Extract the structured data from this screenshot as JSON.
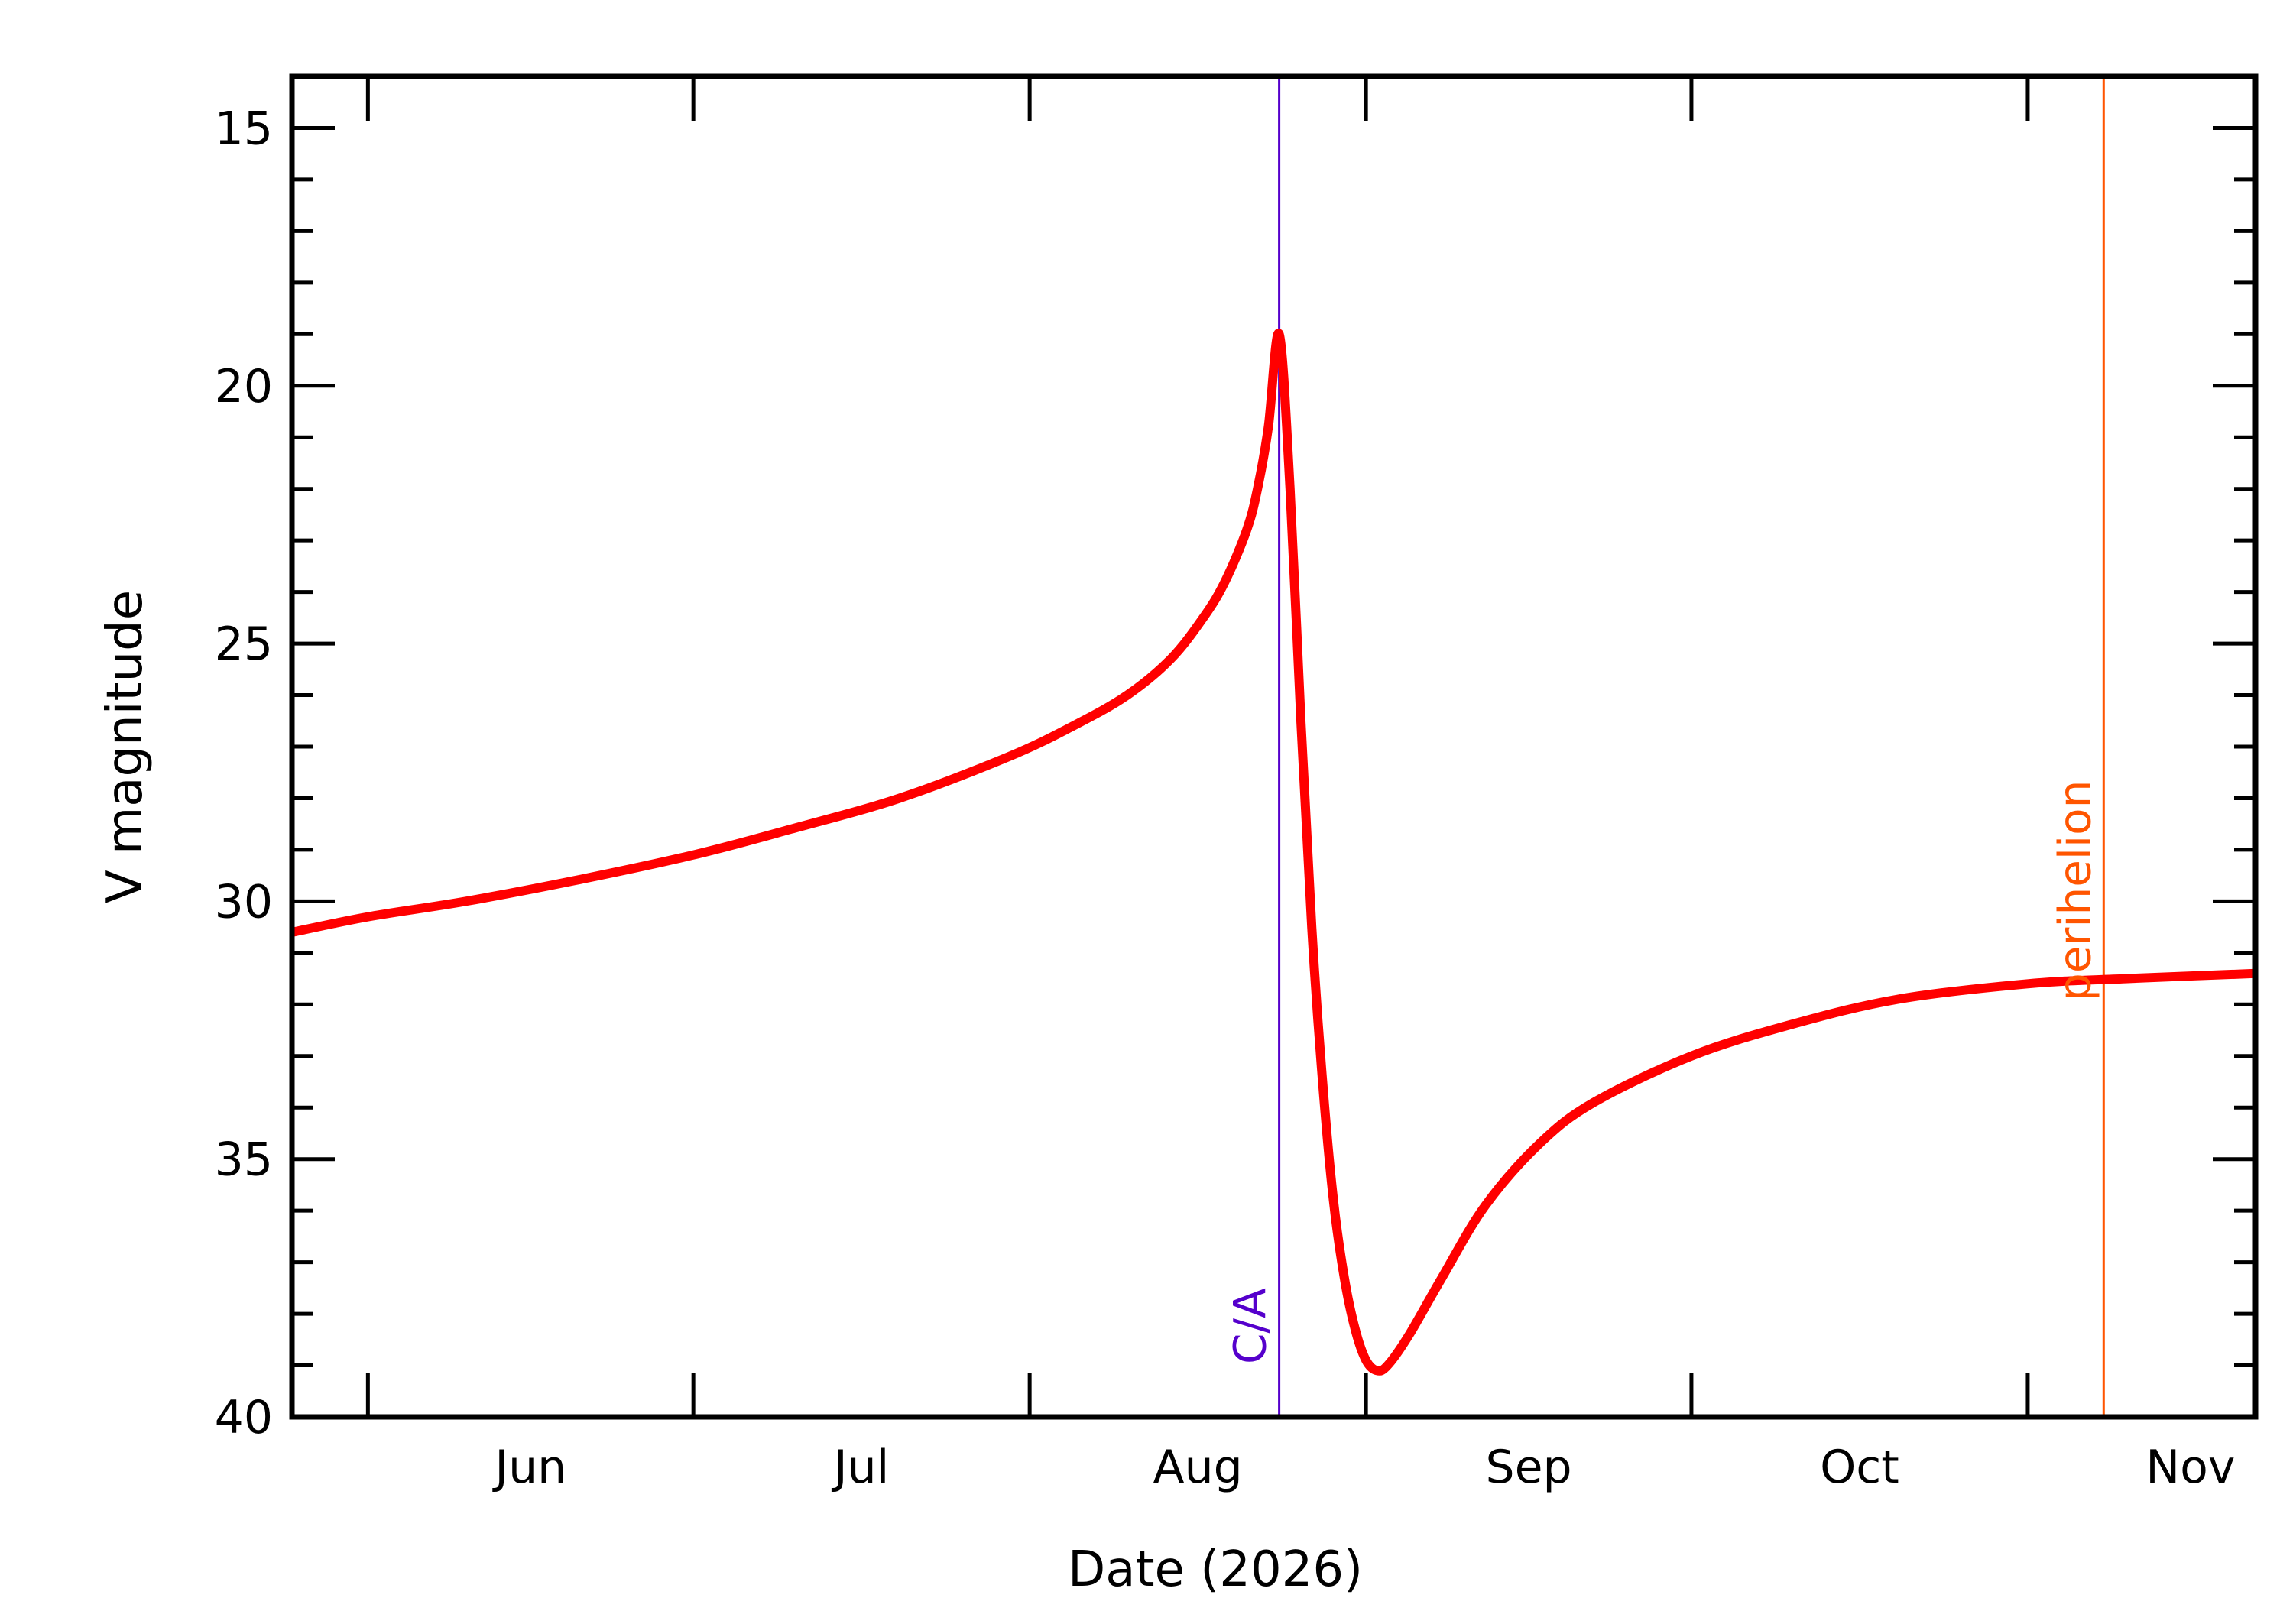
{
  "chart_data": {
    "type": "line",
    "title": "",
    "xlabel": "Date (2026)",
    "ylabel": "V magnitude",
    "x_unit": "date",
    "xlim": [
      "2026-05-25",
      "2026-11-22"
    ],
    "ylim": [
      40,
      14
    ],
    "y_inverted": true,
    "grid": false,
    "legend": "none",
    "x_ticks": [
      {
        "date": "2026-06-01",
        "label": "Jun"
      },
      {
        "date": "2026-07-01",
        "label": "Jul"
      },
      {
        "date": "2026-08-01",
        "label": "Aug"
      },
      {
        "date": "2026-09-01",
        "label": "Sep"
      },
      {
        "date": "2026-10-01",
        "label": "Oct"
      },
      {
        "date": "2026-11-01",
        "label": "Nov"
      }
    ],
    "y_ticks": [
      15,
      20,
      25,
      30,
      35,
      40
    ],
    "y_minor_step": 1,
    "series": [
      {
        "color": "#ff0000",
        "points": [
          {
            "x": "2026-05-25",
            "y": 30.6
          },
          {
            "x": "2026-06-01",
            "y": 30.3
          },
          {
            "x": "2026-06-10",
            "y": 30.0
          },
          {
            "x": "2026-06-20",
            "y": 29.6
          },
          {
            "x": "2026-07-01",
            "y": 29.1
          },
          {
            "x": "2026-07-10",
            "y": 28.6
          },
          {
            "x": "2026-07-20",
            "y": 28.0
          },
          {
            "x": "2026-07-30",
            "y": 27.2
          },
          {
            "x": "2026-08-05",
            "y": 26.6
          },
          {
            "x": "2026-08-10",
            "y": 26.0
          },
          {
            "x": "2026-08-14",
            "y": 25.3
          },
          {
            "x": "2026-08-17",
            "y": 24.5
          },
          {
            "x": "2026-08-19",
            "y": 23.8
          },
          {
            "x": "2026-08-21",
            "y": 22.8
          },
          {
            "x": "2026-08-22",
            "y": 22.0
          },
          {
            "x": "2026-08-23",
            "y": 20.8
          },
          {
            "x": "2026-08-24",
            "y": 19.0
          },
          {
            "x": "2026-08-25",
            "y": 22.0
          },
          {
            "x": "2026-08-26",
            "y": 26.5
          },
          {
            "x": "2026-08-27",
            "y": 30.5
          },
          {
            "x": "2026-08-28",
            "y": 33.5
          },
          {
            "x": "2026-08-29",
            "y": 35.8
          },
          {
            "x": "2026-08-30",
            "y": 37.3
          },
          {
            "x": "2026-08-31",
            "y": 38.3
          },
          {
            "x": "2026-09-01",
            "y": 38.9
          },
          {
            "x": "2026-09-02",
            "y": 39.1
          },
          {
            "x": "2026-09-03",
            "y": 39.0
          },
          {
            "x": "2026-09-05",
            "y": 38.4
          },
          {
            "x": "2026-09-08",
            "y": 37.3
          },
          {
            "x": "2026-09-12",
            "y": 35.9
          },
          {
            "x": "2026-09-17",
            "y": 34.7
          },
          {
            "x": "2026-09-22",
            "y": 33.9
          },
          {
            "x": "2026-10-01",
            "y": 33.0
          },
          {
            "x": "2026-10-10",
            "y": 32.4
          },
          {
            "x": "2026-10-20",
            "y": 31.9
          },
          {
            "x": "2026-11-01",
            "y": 31.6
          },
          {
            "x": "2026-11-10",
            "y": 31.5
          },
          {
            "x": "2026-11-22",
            "y": 31.4
          }
        ]
      }
    ],
    "markers": [
      {
        "date": "2026-08-24",
        "label": "C/A",
        "color": "#5500cc"
      },
      {
        "date": "2026-11-08",
        "label": "perihelion",
        "color": "#ff5500"
      }
    ]
  }
}
